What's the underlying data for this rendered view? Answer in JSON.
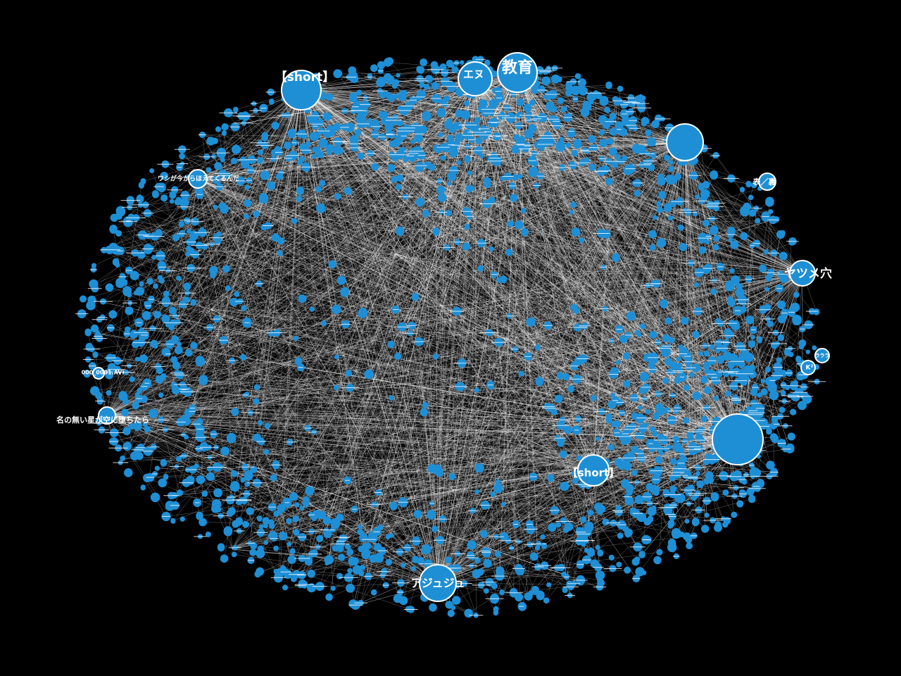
{
  "colors": {
    "background": "#000000",
    "node": "#1e8fd5",
    "edge": "#ffffff",
    "label": "#ffffff"
  },
  "hubs": {
    "short_top": "【short】",
    "edu": "教育",
    "enu": "エヌ",
    "yatsume": "ヤツメ穴",
    "short_bottom": "【short】",
    "ajuju": "アジュジュ",
    "nanashi": "名の無い星が空に堕ちたら",
    "omote_ura": "表／裏",
    "washi": "ワシが今からほえてくるんだ",
    "avi": "000_0001.AVI",
    "k2": "K²",
    "rarara": "ラララ"
  }
}
